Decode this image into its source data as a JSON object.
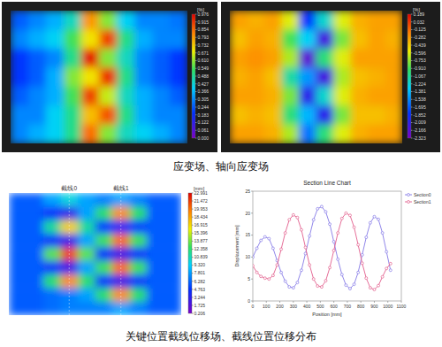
{
  "chart_data": [
    {
      "type": "heatmap",
      "cells": [
        [
          0.25,
          0.3,
          0.35,
          0.45,
          0.8,
          0.6,
          0.4,
          0.3,
          0.3,
          0.28
        ],
        [
          0.3,
          0.35,
          0.4,
          0.55,
          0.7,
          0.9,
          0.5,
          0.35,
          0.3,
          0.3
        ],
        [
          0.2,
          0.25,
          0.3,
          0.5,
          0.95,
          0.6,
          0.45,
          0.3,
          0.25,
          0.2
        ],
        [
          0.2,
          0.25,
          0.35,
          0.6,
          0.7,
          0.92,
          0.5,
          0.3,
          0.25,
          0.2
        ],
        [
          0.25,
          0.3,
          0.35,
          0.55,
          0.9,
          0.65,
          0.45,
          0.35,
          0.3,
          0.25
        ],
        [
          0.3,
          0.3,
          0.4,
          0.5,
          0.75,
          0.88,
          0.5,
          0.35,
          0.3,
          0.3
        ],
        [
          0.3,
          0.35,
          0.4,
          0.5,
          0.85,
          0.6,
          0.45,
          0.4,
          0.35,
          0.3
        ]
      ],
      "colorbar": {
        "label": "[%]",
        "range": [
          0,
          0.976
        ],
        "ticks": [
          0.976,
          0.915,
          0.854,
          0.793,
          0.732,
          0.671,
          {
            "value": 0.61,
            "label": "0.610"
          },
          0.549,
          0.488,
          0.427,
          0.366,
          0.305,
          0.244,
          0.183,
          0.122,
          0.061,
          {
            "value": 0,
            "label": "0.000"
          }
        ]
      }
    },
    {
      "type": "heatmap",
      "cells": [
        [
          -0.3,
          -0.35,
          -0.3,
          -0.6,
          -1.8,
          -1.2,
          -0.6,
          -0.35,
          -0.3,
          -0.3
        ],
        [
          -0.4,
          -0.3,
          -0.35,
          -0.9,
          -1.3,
          -2.1,
          -0.8,
          -0.4,
          -0.3,
          -0.35
        ],
        [
          -0.3,
          -0.25,
          -0.3,
          -0.7,
          -2.2,
          -1.0,
          -0.6,
          -0.3,
          -0.3,
          -0.3
        ],
        [
          -0.35,
          -0.3,
          -0.4,
          -1.1,
          -1.5,
          -2.1,
          -0.7,
          -0.4,
          -0.35,
          -0.3
        ],
        [
          -0.3,
          -0.3,
          -0.35,
          -0.8,
          -2.0,
          -1.2,
          -0.6,
          -0.35,
          -0.3,
          -0.3
        ],
        [
          -0.4,
          -0.35,
          -0.4,
          -1.0,
          -1.4,
          -2.0,
          -0.8,
          -0.4,
          -0.4,
          -0.35
        ],
        [
          -0.3,
          -0.3,
          -0.35,
          -0.7,
          -1.6,
          -1.0,
          -0.6,
          -0.35,
          -0.3,
          -0.3
        ]
      ],
      "colorbar": {
        "label": "[%]",
        "range": [
          -2.323,
          0.189
        ],
        "ticks": [
          0.189,
          0.032,
          -0.125,
          -0.282,
          -0.439,
          -0.596,
          -0.753,
          {
            "value": -0.91,
            "label": "-0.910"
          },
          -1.067,
          -1.224,
          -1.381,
          -1.538,
          -1.695,
          -1.852,
          -2.009,
          -2.166,
          -2.323
        ]
      }
    },
    {
      "type": "heatmap",
      "annotations": [
        "截线0",
        "截线1"
      ],
      "cells": [
        [
          6,
          6,
          8,
          10,
          8,
          7,
          8,
          7,
          6,
          6
        ],
        [
          6,
          6,
          4.5,
          3,
          8,
          12.5,
          19,
          12.5,
          6,
          6
        ],
        [
          6,
          6,
          11.5,
          17,
          11.5,
          5,
          4,
          5,
          6,
          6
        ],
        [
          6,
          6,
          4.5,
          3,
          8,
          13,
          20,
          13,
          6,
          6
        ],
        [
          6,
          6,
          13.5,
          21,
          13.5,
          4.5,
          3,
          4.5,
          6,
          6
        ],
        [
          6,
          6,
          4.5,
          3,
          8,
          13,
          20,
          13,
          6,
          6
        ],
        [
          6,
          6,
          12.5,
          19,
          12.5,
          4.5,
          3,
          4.5,
          6,
          6
        ],
        [
          6,
          6,
          6.5,
          7,
          8,
          12.5,
          19,
          12.5,
          6,
          6
        ],
        [
          6,
          6,
          6.5,
          7,
          7,
          7,
          8,
          7,
          6,
          6
        ]
      ],
      "colorbar": {
        "label": "[mm]",
        "range": [
          0.206,
          22.991
        ],
        "ticks": [
          22.991,
          21.472,
          19.953,
          18.434,
          16.915,
          15.396,
          13.877,
          12.358,
          10.839,
          {
            "value": 9.32,
            "label": "9.320"
          },
          7.801,
          6.282,
          4.763,
          3.244,
          1.725,
          0.206
        ]
      }
    },
    {
      "type": "line",
      "title": "Section Line Chart",
      "x_label": "Position [mm]",
      "y_label": "Displacement [mm]",
      "x": [
        0,
        30,
        60,
        90,
        120,
        150,
        180,
        210,
        240,
        270,
        300,
        330,
        360,
        390,
        420,
        450,
        480,
        510,
        540,
        570,
        600,
        630,
        660,
        690,
        720,
        750,
        780,
        810,
        840,
        870,
        900,
        930,
        960,
        990,
        1020
      ],
      "series": [
        {
          "name": "Section0",
          "color": "#8479e6",
          "marker": "circle",
          "values": [
            10,
            12,
            13.8,
            14.6,
            14.2,
            12,
            9.2,
            6.5,
            4.5,
            3.2,
            3.0,
            4.2,
            7,
            10.8,
            14.8,
            18.5,
            21,
            21.5,
            20.3,
            17.5,
            13.5,
            9.5,
            6,
            3.6,
            2.8,
            3.8,
            6.5,
            10.5,
            14.5,
            17.8,
            19.2,
            18.6,
            15.5,
            11.2,
            7
          ]
        },
        {
          "name": "Section1",
          "color": "#e25e8c",
          "marker": "circle",
          "values": [
            8,
            6.5,
            5.6,
            5.2,
            5.0,
            5.8,
            8.2,
            11.8,
            15.5,
            18.5,
            19.6,
            19,
            16.2,
            12.2,
            8.2,
            5,
            3.4,
            3.2,
            4.6,
            7.6,
            11.5,
            15.5,
            18.8,
            20,
            19.5,
            16.8,
            12.8,
            8.6,
            5.2,
            3,
            2.6,
            3.5,
            5.5,
            7.4,
            8.5
          ]
        }
      ],
      "xlim": [
        0,
        1100
      ],
      "xticks": [
        0,
        100,
        200,
        300,
        400,
        500,
        600,
        700,
        800,
        900,
        1000,
        1100
      ],
      "ylim": [
        0,
        25
      ],
      "yticks": [
        0,
        5,
        10,
        15,
        20,
        25
      ],
      "grid": false,
      "legend": "right"
    }
  ],
  "captions": [
    "应变场、轴向应变场",
    "关键位置截线位移场、截线位置位移分布"
  ]
}
